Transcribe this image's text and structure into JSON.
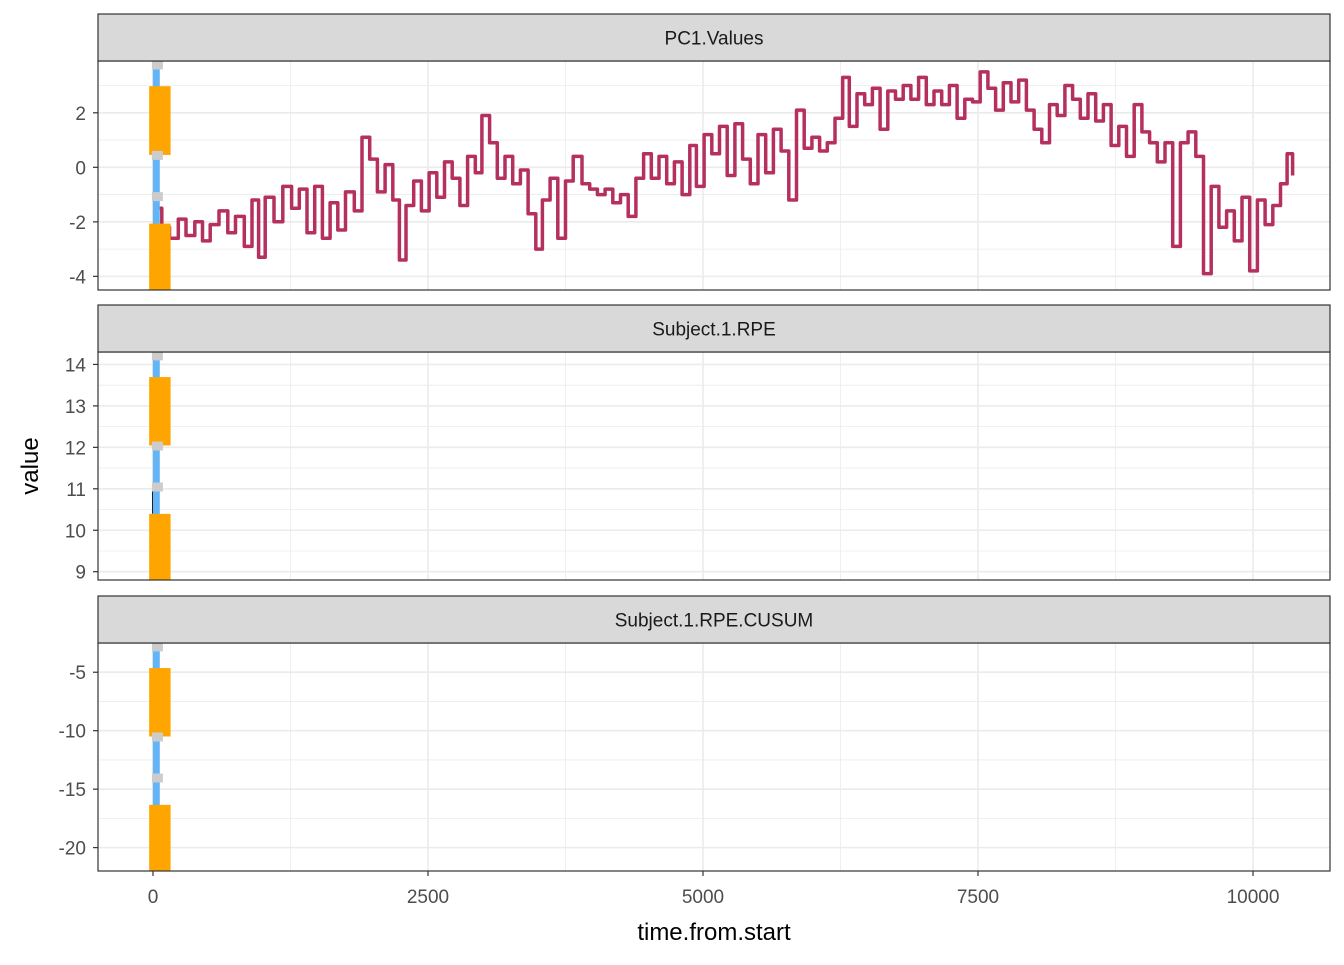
{
  "chart_data": {
    "type": "line",
    "xlabel": "time.from.start",
    "ylabel": "value",
    "x_ticks": [
      0,
      2500,
      5000,
      7500,
      10000
    ],
    "xlim": [
      -500,
      10700
    ],
    "colors": {
      "series_pc1": "#B5305F",
      "series_rpe": "#000000",
      "blue_segment": "#64B5F6",
      "orange_block": "#FFA500",
      "grey_marker": "#CCCCCC",
      "strip_bg": "#D9D9D9",
      "grid": "#EBEBEB"
    },
    "facets": [
      {
        "label": "PC1.Values",
        "ylim": [
          -4.5,
          3.9
        ],
        "y_ticks": [
          -4,
          -2,
          0,
          2
        ],
        "series_points": [
          [
            0,
            -1.5
          ],
          [
            80,
            -2.2
          ],
          [
            150,
            -2.6
          ],
          [
            230,
            -1.9
          ],
          [
            300,
            -2.5
          ],
          [
            380,
            -2.0
          ],
          [
            450,
            -2.7
          ],
          [
            520,
            -2.1
          ],
          [
            600,
            -1.6
          ],
          [
            680,
            -2.4
          ],
          [
            750,
            -1.8
          ],
          [
            830,
            -2.9
          ],
          [
            900,
            -1.2
          ],
          [
            960,
            -3.3
          ],
          [
            1020,
            -1.1
          ],
          [
            1100,
            -2.0
          ],
          [
            1180,
            -0.7
          ],
          [
            1260,
            -1.5
          ],
          [
            1330,
            -0.8
          ],
          [
            1400,
            -2.4
          ],
          [
            1470,
            -0.7
          ],
          [
            1540,
            -2.6
          ],
          [
            1610,
            -1.3
          ],
          [
            1680,
            -2.3
          ],
          [
            1750,
            -0.9
          ],
          [
            1830,
            -1.6
          ],
          [
            1900,
            1.1
          ],
          [
            1970,
            0.3
          ],
          [
            2040,
            -0.9
          ],
          [
            2110,
            0.1
          ],
          [
            2180,
            -1.2
          ],
          [
            2240,
            -3.4
          ],
          [
            2300,
            -1.4
          ],
          [
            2370,
            -0.5
          ],
          [
            2440,
            -1.6
          ],
          [
            2510,
            -0.2
          ],
          [
            2580,
            -1.1
          ],
          [
            2650,
            0.2
          ],
          [
            2720,
            -0.4
          ],
          [
            2790,
            -1.4
          ],
          [
            2860,
            0.4
          ],
          [
            2930,
            -0.2
          ],
          [
            2990,
            1.9
          ],
          [
            3060,
            0.9
          ],
          [
            3130,
            -0.4
          ],
          [
            3200,
            0.4
          ],
          [
            3270,
            -0.6
          ],
          [
            3340,
            -0.1
          ],
          [
            3410,
            -1.7
          ],
          [
            3480,
            -3.0
          ],
          [
            3540,
            -1.2
          ],
          [
            3610,
            -0.4
          ],
          [
            3680,
            -2.6
          ],
          [
            3750,
            -0.5
          ],
          [
            3820,
            0.4
          ],
          [
            3900,
            -0.6
          ],
          [
            3970,
            -0.8
          ],
          [
            4040,
            -1.0
          ],
          [
            4110,
            -0.8
          ],
          [
            4180,
            -1.3
          ],
          [
            4250,
            -1.0
          ],
          [
            4320,
            -1.8
          ],
          [
            4390,
            -0.4
          ],
          [
            4460,
            0.5
          ],
          [
            4530,
            -0.4
          ],
          [
            4600,
            0.4
          ],
          [
            4670,
            -0.6
          ],
          [
            4740,
            0.2
          ],
          [
            4810,
            -1.0
          ],
          [
            4880,
            0.8
          ],
          [
            4940,
            -0.7
          ],
          [
            5010,
            1.2
          ],
          [
            5080,
            0.5
          ],
          [
            5150,
            1.5
          ],
          [
            5220,
            -0.3
          ],
          [
            5290,
            1.6
          ],
          [
            5360,
            0.3
          ],
          [
            5430,
            -0.6
          ],
          [
            5500,
            1.2
          ],
          [
            5570,
            -0.2
          ],
          [
            5640,
            1.4
          ],
          [
            5710,
            0.6
          ],
          [
            5780,
            -1.2
          ],
          [
            5850,
            2.1
          ],
          [
            5920,
            0.7
          ],
          [
            5990,
            1.1
          ],
          [
            6060,
            0.6
          ],
          [
            6130,
            0.9
          ],
          [
            6200,
            1.8
          ],
          [
            6270,
            3.3
          ],
          [
            6330,
            1.5
          ],
          [
            6400,
            2.7
          ],
          [
            6470,
            2.3
          ],
          [
            6540,
            2.9
          ],
          [
            6610,
            1.4
          ],
          [
            6680,
            2.8
          ],
          [
            6750,
            2.5
          ],
          [
            6820,
            3.0
          ],
          [
            6890,
            2.5
          ],
          [
            6960,
            3.3
          ],
          [
            7030,
            2.3
          ],
          [
            7100,
            2.8
          ],
          [
            7170,
            2.3
          ],
          [
            7240,
            3.0
          ],
          [
            7310,
            1.8
          ],
          [
            7380,
            2.5
          ],
          [
            7450,
            2.4
          ],
          [
            7520,
            3.5
          ],
          [
            7590,
            2.9
          ],
          [
            7660,
            2.1
          ],
          [
            7730,
            3.1
          ],
          [
            7800,
            2.4
          ],
          [
            7870,
            3.2
          ],
          [
            7940,
            2.1
          ],
          [
            8010,
            1.4
          ],
          [
            8080,
            0.9
          ],
          [
            8150,
            2.3
          ],
          [
            8220,
            1.9
          ],
          [
            8290,
            3.0
          ],
          [
            8360,
            2.5
          ],
          [
            8430,
            1.8
          ],
          [
            8500,
            2.7
          ],
          [
            8570,
            1.7
          ],
          [
            8640,
            2.3
          ],
          [
            8710,
            0.8
          ],
          [
            8780,
            1.5
          ],
          [
            8850,
            0.4
          ],
          [
            8920,
            2.3
          ],
          [
            8990,
            1.3
          ],
          [
            9060,
            0.9
          ],
          [
            9130,
            0.2
          ],
          [
            9200,
            0.9
          ],
          [
            9270,
            -2.9
          ],
          [
            9340,
            0.9
          ],
          [
            9410,
            1.3
          ],
          [
            9480,
            0.4
          ],
          [
            9550,
            -3.9
          ],
          [
            9620,
            -0.7
          ],
          [
            9690,
            -2.2
          ],
          [
            9760,
            -1.6
          ],
          [
            9830,
            -2.7
          ],
          [
            9900,
            -1.1
          ],
          [
            9970,
            -3.8
          ],
          [
            10040,
            -1.2
          ],
          [
            10110,
            -2.1
          ],
          [
            10180,
            -1.4
          ],
          [
            10250,
            -0.6
          ],
          [
            10310,
            0.5
          ],
          [
            10360,
            -0.3
          ]
        ]
      },
      {
        "label": "Subject.1.RPE",
        "ylim": [
          8.8,
          14.3
        ],
        "y_ticks": [
          9,
          10,
          11,
          12,
          13,
          14
        ],
        "series_points": [
          [
            0,
            10.4
          ],
          [
            0,
            11.0
          ]
        ]
      },
      {
        "label": "Subject.1.RPE.CUSUM",
        "ylim": [
          -22,
          -2.5
        ],
        "y_ticks": [
          -20,
          -15,
          -10,
          -5
        ],
        "series_points": [
          [
            0,
            -4.0
          ],
          [
            20,
            -15.0
          ]
        ]
      }
    ]
  }
}
